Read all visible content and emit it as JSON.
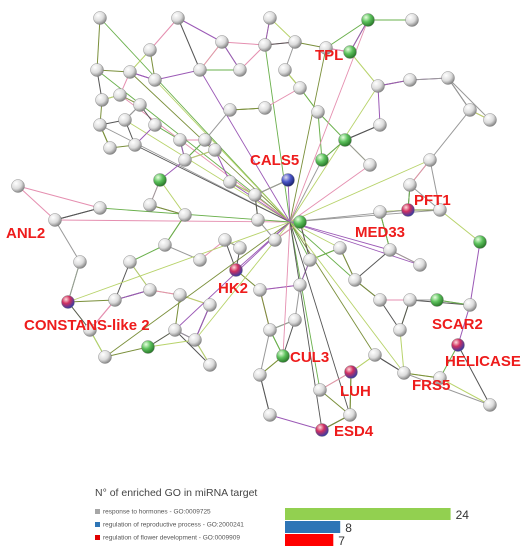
{
  "genes": [
    "TPL",
    "CALS5",
    "PFT1",
    "MED33",
    "ANL2",
    "HK2",
    "CONSTANS-like 2",
    "SCAR2",
    "CUL3",
    "HELICASE",
    "LUH",
    "FRS5",
    "ESD4"
  ],
  "legend": {
    "title": "N° of enriched GO in miRNA target",
    "items": [
      {
        "name": "response to hormones - GO:0009725",
        "swatch_color": "#a6a6a6",
        "bar_color": "#92d050",
        "value": 24
      },
      {
        "name": "regulation of reproductive process - GO:2000241",
        "swatch_color": "#2e75b6",
        "bar_color": "#2e75b6",
        "value": 8
      },
      {
        "name": "regulation of flower development - GO:0009909",
        "swatch_color": "#e00000",
        "bar_color": "#ff0000",
        "value": 7
      }
    ]
  }
}
